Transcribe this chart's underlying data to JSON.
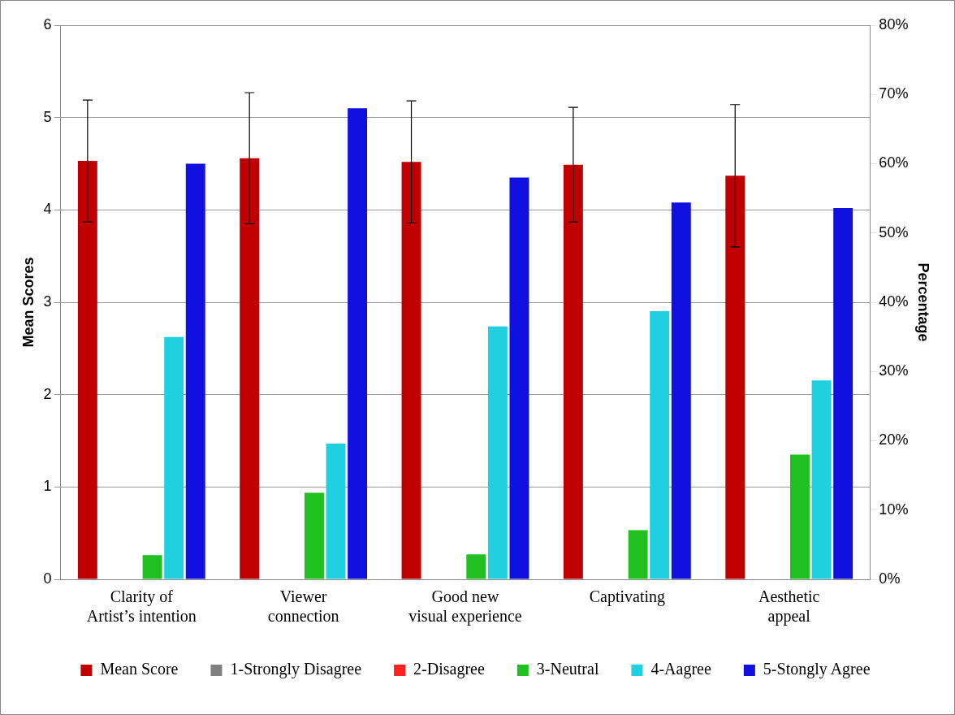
{
  "chart_data": {
    "type": "bar",
    "categories": [
      "Clarity of Artist’s intention",
      "Viewer connection",
      "Good new visual experience",
      "Captivating",
      "Aesthetic appeal"
    ],
    "ylabel": "Mean Scores",
    "y2label": "Percentage",
    "ylim": [
      0,
      6
    ],
    "yticks": [
      0,
      1,
      2,
      3,
      4,
      5,
      6
    ],
    "y2lim": [
      0,
      80
    ],
    "y2ticks": [
      {
        "value": 0,
        "label": "0%"
      },
      {
        "value": 10,
        "label": "10%"
      },
      {
        "value": 20,
        "label": "20%"
      },
      {
        "value": 30,
        "label": "30%"
      },
      {
        "value": 40,
        "label": "40%"
      },
      {
        "value": 50,
        "label": "50%"
      },
      {
        "value": 60,
        "label": "60%"
      },
      {
        "value": 70,
        "label": "70%"
      },
      {
        "value": 80,
        "label": "80%"
      }
    ],
    "grid": "y",
    "legend": "bottom",
    "series": [
      {
        "name": "Mean Score",
        "color": "#c00000",
        "values": [
          4.53,
          4.56,
          4.52,
          4.49,
          4.37
        ],
        "errors": [
          0.66,
          0.71,
          0.66,
          0.62,
          0.77
        ]
      },
      {
        "name": "1-Strongly Disagree",
        "color": "#808080",
        "axis": "y2",
        "values": [
          0,
          0,
          0,
          0,
          0
        ]
      },
      {
        "name": "2-Disagree",
        "color": "#ff2020",
        "axis": "y2",
        "values": [
          0,
          0,
          0,
          0,
          0
        ]
      },
      {
        "name": "3-Neutral",
        "color": "#20c020",
        "axis": "y2",
        "values": [
          3.5,
          12.5,
          3.6,
          7.1,
          18
        ]
      },
      {
        "name": "4-Aagree",
        "color": "#20d0e0",
        "axis": "y2",
        "values": [
          35,
          19.6,
          36.5,
          38.7,
          28.7
        ]
      },
      {
        "name": "5-Stongly Agree",
        "color": "#1010e0",
        "axis": "y2",
        "values": [
          60,
          68,
          58,
          54.4,
          53.6
        ]
      }
    ]
  }
}
